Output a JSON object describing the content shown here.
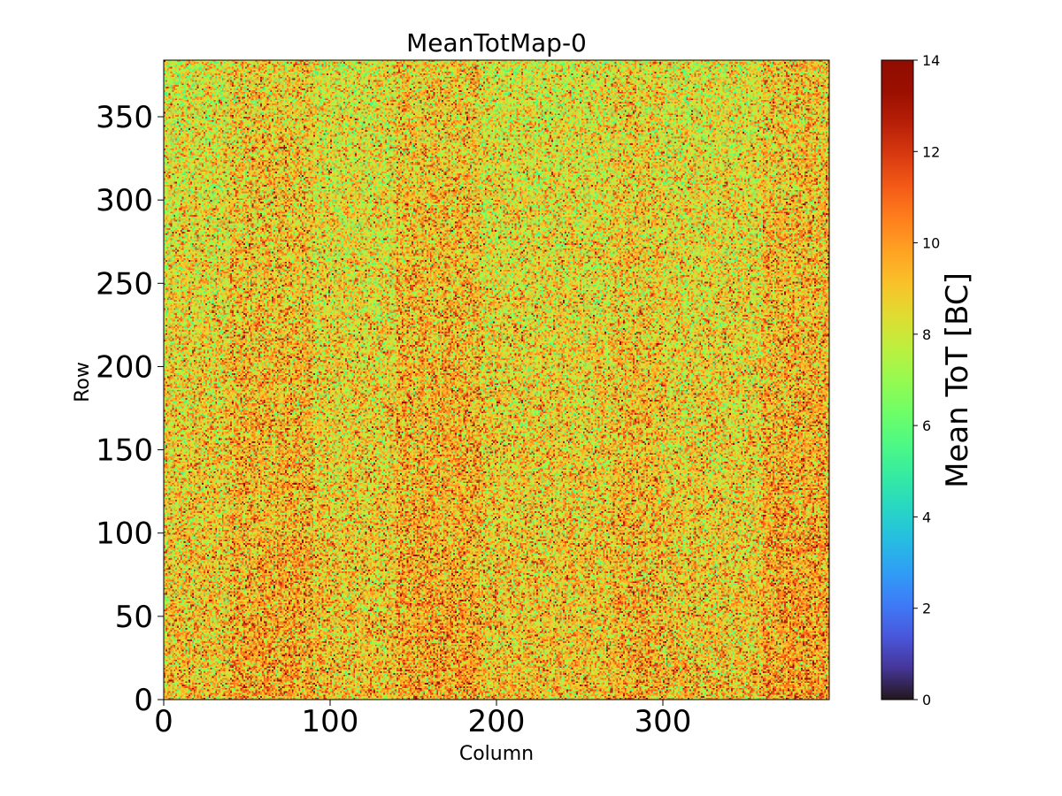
{
  "chart_data": {
    "type": "heatmap",
    "title": "MeanTotMap-0",
    "xlabel": "Column",
    "ylabel": "Row",
    "xlim": [
      0,
      400
    ],
    "ylim": [
      0,
      384
    ],
    "xticks": [
      0,
      100,
      200,
      300
    ],
    "yticks": [
      0,
      50,
      100,
      150,
      200,
      250,
      300,
      350
    ],
    "grid": false,
    "colormap": "turbo",
    "colorbar": {
      "label": "Mean ToT [BC]",
      "range": [
        0,
        14
      ],
      "ticks": [
        0,
        2,
        4,
        6,
        8,
        10,
        12,
        14
      ]
    },
    "distribution": {
      "mean_value": 9.2,
      "spread": 1.8,
      "typical_range": [
        6.5,
        13
      ],
      "pattern": "noisy pixel map; values mostly 7-12 BC, slightly lower (greener) toward upper rows, darker red speckle denser near columns ~40-90, ~140-190, ~360-400"
    }
  }
}
